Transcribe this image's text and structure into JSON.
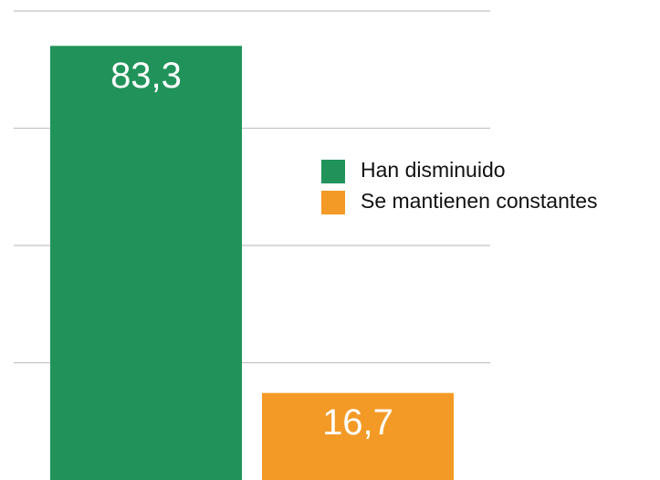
{
  "chart_data": {
    "type": "bar",
    "categories": [
      null
    ],
    "series": [
      {
        "name": "Han disminuido",
        "color": "#21935a",
        "values": [
          83.3
        ],
        "value_labels": [
          "83,3"
        ]
      },
      {
        "name": "Se mantienen constantes",
        "color": "#f39a26",
        "values": [
          16.7
        ],
        "value_labels": [
          "16,7"
        ]
      }
    ],
    "ylim": [
      0,
      90
    ],
    "yticks": [
      22.5,
      45,
      67.5,
      90
    ],
    "grid": true,
    "legend": "right"
  }
}
